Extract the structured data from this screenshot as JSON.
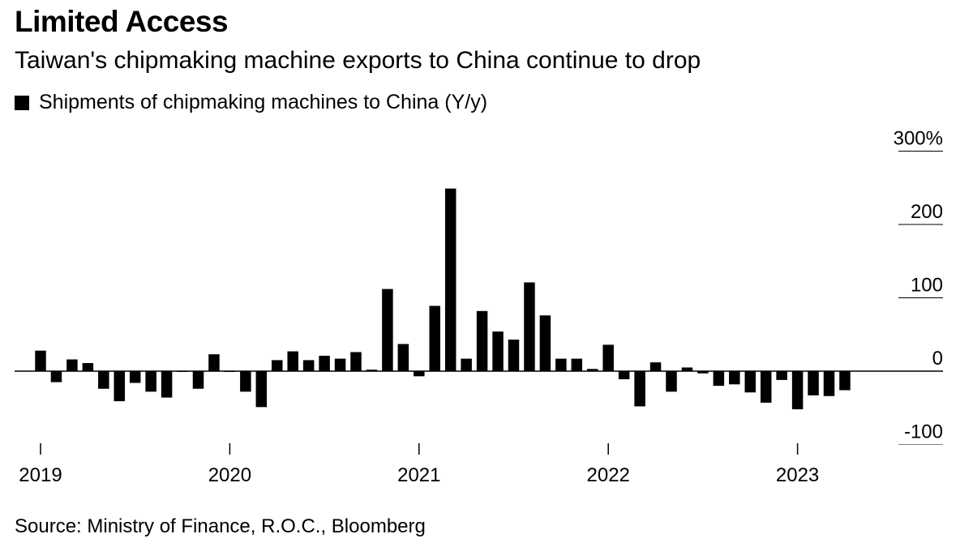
{
  "title": "Limited Access",
  "subtitle": "Taiwan's chipmaking machine exports to China continue to drop",
  "legend_label": "Shipments of chipmaking machines to China (Y/y)",
  "source": "Source: Ministry of Finance, R.O.C., Bloomberg",
  "chart_data": {
    "type": "bar",
    "title": "Limited Access",
    "subtitle": "Taiwan's chipmaking machine exports to China continue to drop",
    "series_name": "Shipments of chipmaking machines to China (Y/y)",
    "bar_color": "#000000",
    "xlabel": "",
    "ylabel": "",
    "ylim": [
      -100,
      300
    ],
    "y_ticks": [
      {
        "value": 300,
        "label": "300%"
      },
      {
        "value": 200,
        "label": "200"
      },
      {
        "value": 100,
        "label": "100"
      },
      {
        "value": 0,
        "label": "0"
      },
      {
        "value": -100,
        "label": "-100"
      }
    ],
    "x_ticks": [
      {
        "index": 0,
        "label": "2019"
      },
      {
        "index": 12,
        "label": "2020"
      },
      {
        "index": 24,
        "label": "2021"
      },
      {
        "index": 36,
        "label": "2022"
      },
      {
        "index": 48,
        "label": "2023"
      }
    ],
    "categories": [
      "2019-01",
      "2019-02",
      "2019-03",
      "2019-04",
      "2019-05",
      "2019-06",
      "2019-07",
      "2019-08",
      "2019-09",
      "2019-10",
      "2019-11",
      "2019-12",
      "2020-01",
      "2020-02",
      "2020-03",
      "2020-04",
      "2020-05",
      "2020-06",
      "2020-07",
      "2020-08",
      "2020-09",
      "2020-10",
      "2020-11",
      "2020-12",
      "2021-01",
      "2021-02",
      "2021-03",
      "2021-04",
      "2021-05",
      "2021-06",
      "2021-07",
      "2021-08",
      "2021-09",
      "2021-10",
      "2021-11",
      "2021-12",
      "2022-01",
      "2022-02",
      "2022-03",
      "2022-04",
      "2022-05",
      "2022-06",
      "2022-07",
      "2022-08",
      "2022-09",
      "2022-10",
      "2022-11",
      "2022-12",
      "2023-01",
      "2023-02",
      "2023-03",
      "2023-04",
      "2023-05",
      "2023-06",
      "2023-07"
    ],
    "values": [
      28,
      -15,
      16,
      11,
      -24,
      -41,
      -16,
      -28,
      -36,
      0,
      -24,
      23,
      0,
      -28,
      -49,
      15,
      27,
      15,
      21,
      17,
      26,
      2,
      112,
      37,
      -7,
      89,
      249,
      17,
      82,
      54,
      43,
      121,
      76,
      17,
      17,
      3,
      36,
      -11,
      -48,
      12,
      -28,
      5,
      -3,
      -20,
      -18,
      -29,
      -43,
      -12,
      -52,
      -33,
      -34,
      -26,
      null,
      null,
      null
    ]
  }
}
